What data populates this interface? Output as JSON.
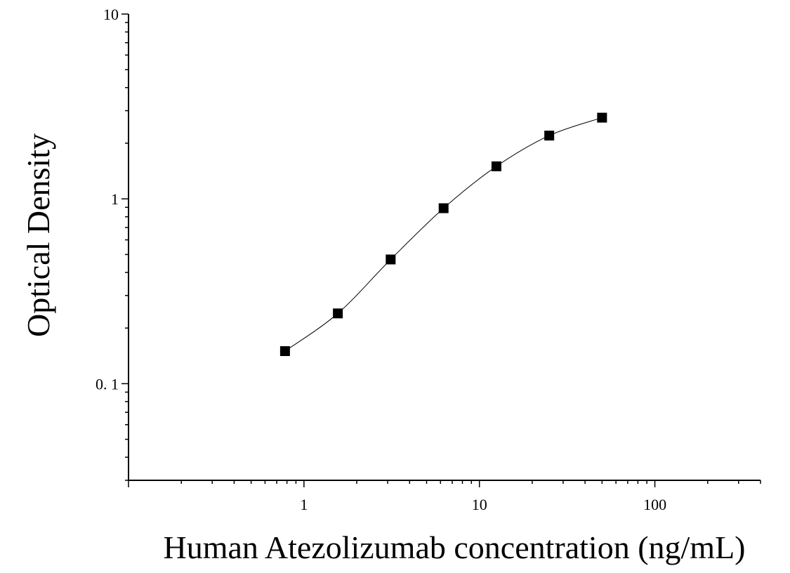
{
  "chart_data": {
    "type": "scatter",
    "title": "",
    "xlabel": "Human Atezolizumab concentration (ng/mL)",
    "ylabel": "Optical Density",
    "x_scale": "log",
    "y_scale": "log",
    "xlim": [
      0.1,
      400
    ],
    "ylim": [
      0.03,
      10
    ],
    "x_ticks": [
      {
        "value": 1,
        "label": "1"
      },
      {
        "value": 10,
        "label": "10"
      },
      {
        "value": 100,
        "label": "100"
      }
    ],
    "y_ticks": [
      {
        "value": 0.1,
        "label": "0. 1"
      },
      {
        "value": 1,
        "label": "1"
      },
      {
        "value": 10,
        "label": "10"
      }
    ],
    "grid": false,
    "legend": "none",
    "marker": "square",
    "marker_color": "#000000",
    "line_color": "#000000",
    "series": [
      {
        "x": [
          0.78,
          1.56,
          3.12,
          6.25,
          12.5,
          25,
          50
        ],
        "y": [
          0.15,
          0.24,
          0.47,
          0.89,
          1.5,
          2.2,
          2.75
        ],
        "fit": "4PL curve"
      }
    ]
  }
}
